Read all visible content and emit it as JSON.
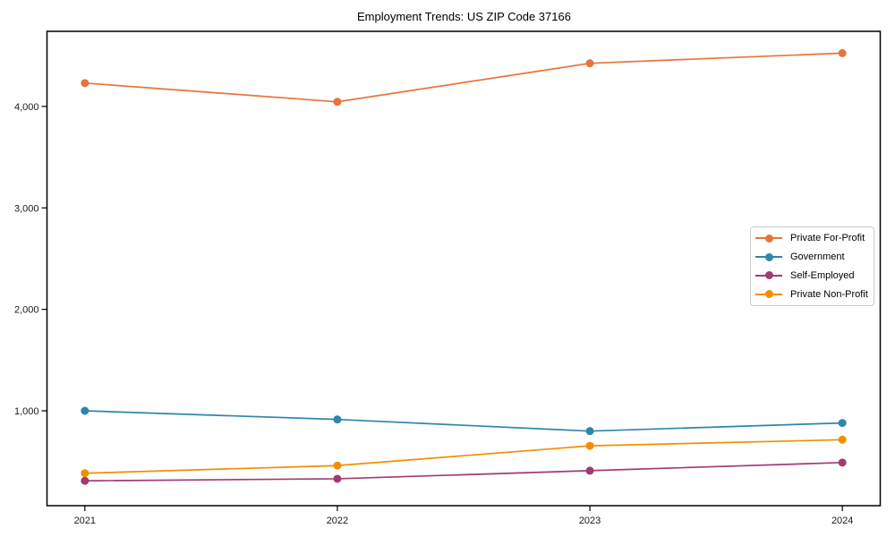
{
  "chart_data": {
    "type": "line",
    "title": "Employment Trends: US ZIP Code 37166",
    "x": [
      2021,
      2022,
      2023,
      2024
    ],
    "xtick_labels": [
      "2021",
      "2022",
      "2023",
      "2024"
    ],
    "ytick_values": [
      1000,
      2000,
      3000,
      4000
    ],
    "ytick_labels": [
      "1,000",
      "2,000",
      "3,000",
      "4,000"
    ],
    "ylim": [
      65,
      4740
    ],
    "xlim": [
      2020.85,
      2024.15
    ],
    "grid": false,
    "legend_position": "center-right",
    "axis_color": "#000000",
    "text_color": "#1a1a1a",
    "series": [
      {
        "name": "Private For-Profit",
        "color": "#E8743B",
        "values": [
          4230,
          4045,
          4425,
          4525
        ]
      },
      {
        "name": "Government",
        "color": "#2E86AB",
        "values": [
          1000,
          915,
          800,
          880
        ]
      },
      {
        "name": "Self-Employed",
        "color": "#A23B72",
        "values": [
          310,
          330,
          410,
          490
        ]
      },
      {
        "name": "Private Non-Profit",
        "color": "#F18F01",
        "values": [
          385,
          460,
          655,
          715
        ]
      }
    ]
  }
}
